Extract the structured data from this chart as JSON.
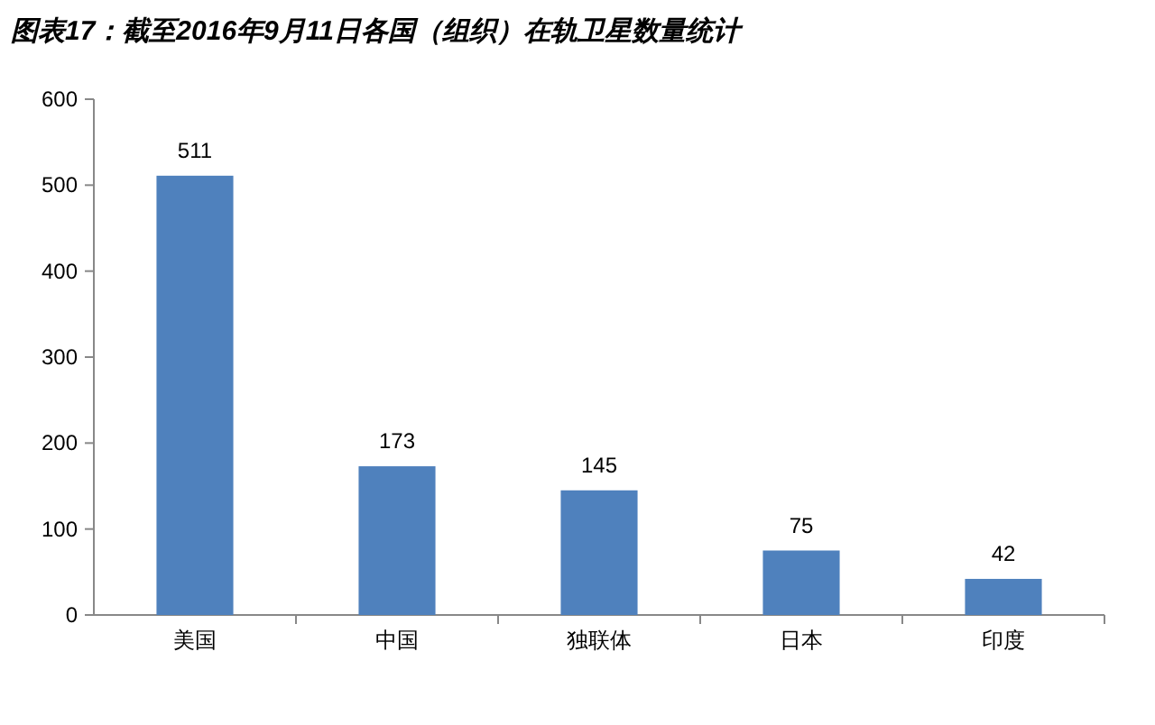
{
  "chart_data": {
    "type": "bar",
    "title": "图表17：截至2016年9月11日各国（组织）在轨卫星数量统计",
    "categories": [
      "美国",
      "中国",
      "独联体",
      "日本",
      "印度"
    ],
    "values": [
      511,
      173,
      145,
      75,
      42
    ],
    "color": "#4f81bd",
    "ylim": [
      0,
      600
    ],
    "yticks": [
      0,
      100,
      200,
      300,
      400,
      500,
      600
    ],
    "data_labels": true
  }
}
